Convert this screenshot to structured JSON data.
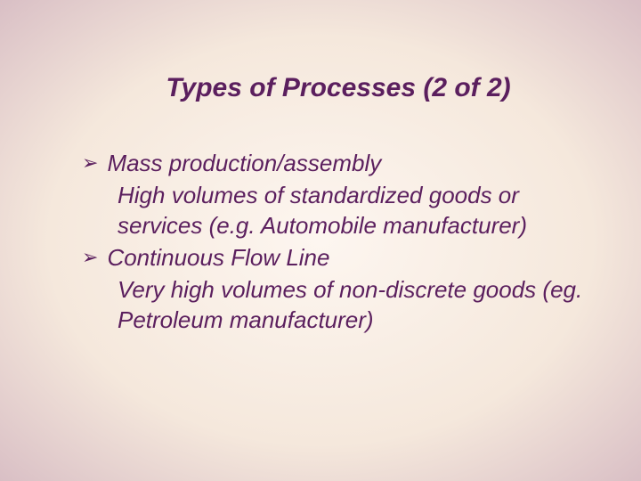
{
  "slide": {
    "title": "Types of Processes (2 of 2)",
    "items": [
      {
        "heading": "Mass production/assembly",
        "description": "High volumes of standardized goods or services (e.g. Automobile manufacturer)"
      },
      {
        "heading": "Continuous Flow Line",
        "description": "Very high volumes of non-discrete goods (eg. Petroleum manufacturer)"
      }
    ]
  },
  "style": {
    "text_color": "#5b1f5e",
    "background_center": "#fdf6f0",
    "background_edge": "#d9bfc5",
    "title_fontsize": 30,
    "body_fontsize": 26,
    "bullet_glyph": "➢"
  }
}
